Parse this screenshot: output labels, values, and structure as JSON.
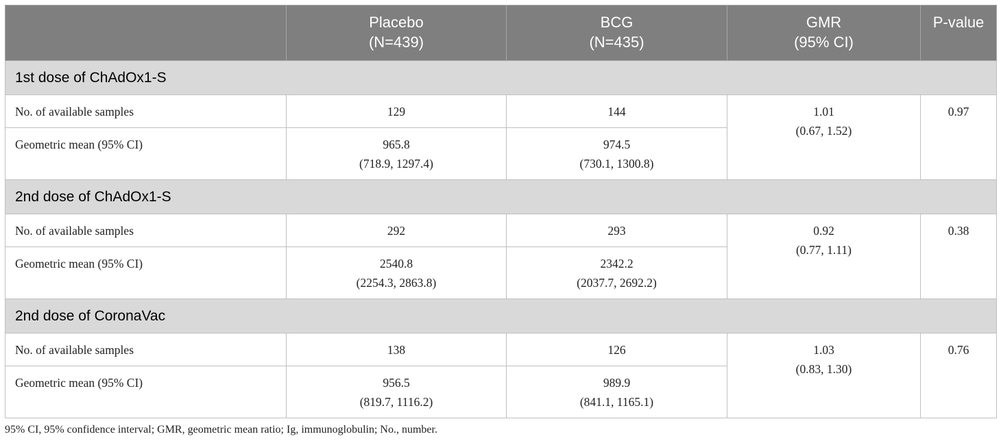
{
  "table": {
    "header": [
      [
        "Placebo",
        "(N=439)"
      ],
      [
        "BCG",
        "(N=435)"
      ],
      [
        "GMR",
        "(95% CI)"
      ],
      [
        "P-value"
      ]
    ],
    "sections": [
      {
        "title": "1st dose of ChAdOx1-S",
        "rows": [
          {
            "label": "No. of available samples",
            "placebo": [
              "129"
            ],
            "bcg": [
              "144"
            ]
          },
          {
            "label": "Geometric mean (95% CI)",
            "placebo": [
              "965.8",
              "(718.9, 1297.4)"
            ],
            "bcg": [
              "974.5",
              "(730.1, 1300.8)"
            ]
          }
        ],
        "gmr": [
          "1.01",
          "(0.67, 1.52)"
        ],
        "p_value": "0.97"
      },
      {
        "title": "2nd dose of ChAdOx1-S",
        "rows": [
          {
            "label": "No. of available samples",
            "placebo": [
              "292"
            ],
            "bcg": [
              "293"
            ]
          },
          {
            "label": "Geometric mean (95% CI)",
            "placebo": [
              "2540.8",
              "(2254.3, 2863.8)"
            ],
            "bcg": [
              "2342.2",
              "(2037.7, 2692.2)"
            ]
          }
        ],
        "gmr": [
          "0.92",
          "(0.77, 1.11)"
        ],
        "p_value": "0.38"
      },
      {
        "title": "2nd dose of CoronaVac",
        "rows": [
          {
            "label": "No. of available samples",
            "placebo": [
              "138"
            ],
            "bcg": [
              "126"
            ]
          },
          {
            "label": "Geometric mean (95% CI)",
            "placebo": [
              "956.5",
              "(819.7, 1116.2)"
            ],
            "bcg": [
              "989.9",
              "(841.1, 1165.1)"
            ]
          }
        ],
        "gmr": [
          "1.03",
          "(0.83, 1.30)"
        ],
        "p_value": "0.76"
      }
    ],
    "footnote": "95% CI, 95% confidence interval; GMR, geometric mean ratio; Ig, immunoglobulin; No., number."
  }
}
